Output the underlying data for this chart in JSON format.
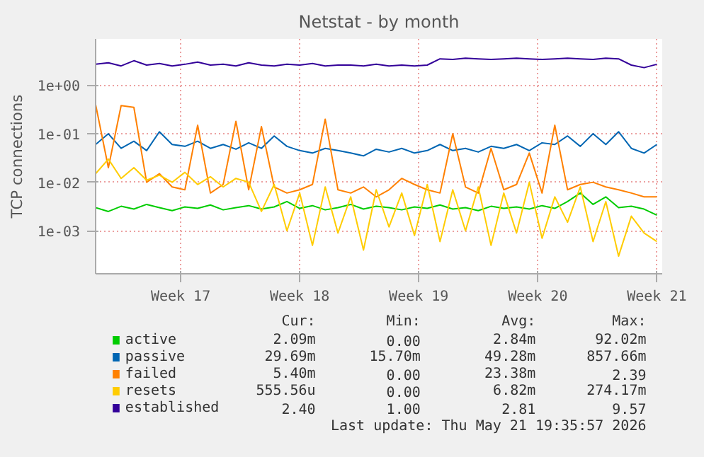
{
  "chart_data": {
    "type": "line",
    "title": "Netstat - by month",
    "ylabel": "TCP connections",
    "log": "y",
    "grid": true,
    "legend": "bottom",
    "xlim": [
      "2026-04-18T12:00",
      "2026-05-21T19:35"
    ],
    "ylim": [
      0.00013,
      9
    ],
    "xticks": [
      {
        "value": "2026-04-23T12:00",
        "label": "Week 17"
      },
      {
        "value": "2026-04-30T12:00",
        "label": "Week 18"
      },
      {
        "value": "2026-05-07T12:00",
        "label": "Week 19"
      },
      {
        "value": "2026-05-14T12:00",
        "label": "Week 20"
      },
      {
        "value": "2026-05-21T12:00",
        "label": "Week 21"
      }
    ],
    "yticks": [
      {
        "value": 0.001,
        "label": "1e-03"
      },
      {
        "value": 0.01,
        "label": "1e-02"
      },
      {
        "value": 0.1,
        "label": "1e-01"
      },
      {
        "value": 1,
        "label": "1e+00"
      }
    ],
    "x": [
      "2026-04-18T12:00",
      "2026-04-19T06:00",
      "2026-04-20T00:00",
      "2026-04-20T18:00",
      "2026-04-21T12:00",
      "2026-04-22T06:00",
      "2026-04-23T00:00",
      "2026-04-23T18:00",
      "2026-04-24T12:00",
      "2026-04-25T06:00",
      "2026-04-26T00:00",
      "2026-04-26T18:00",
      "2026-04-27T12:00",
      "2026-04-28T06:00",
      "2026-04-29T00:00",
      "2026-04-29T18:00",
      "2026-04-30T12:00",
      "2026-05-01T06:00",
      "2026-05-02T00:00",
      "2026-05-02T18:00",
      "2026-05-03T12:00",
      "2026-05-04T06:00",
      "2026-05-05T00:00",
      "2026-05-05T18:00",
      "2026-05-06T12:00",
      "2026-05-07T06:00",
      "2026-05-08T00:00",
      "2026-05-08T18:00",
      "2026-05-09T12:00",
      "2026-05-10T06:00",
      "2026-05-11T00:00",
      "2026-05-11T18:00",
      "2026-05-12T12:00",
      "2026-05-13T06:00",
      "2026-05-14T00:00",
      "2026-05-14T18:00",
      "2026-05-15T12:00",
      "2026-05-16T06:00",
      "2026-05-17T00:00",
      "2026-05-17T18:00",
      "2026-05-18T12:00",
      "2026-05-19T06:00",
      "2026-05-20T00:00",
      "2026-05-20T18:00",
      "2026-05-21T12:00"
    ],
    "series": [
      {
        "name": "active",
        "color": "#00cc00",
        "values": [
          0.003,
          0.0025,
          0.0032,
          0.0028,
          0.0035,
          0.003,
          0.0026,
          0.0031,
          0.0029,
          0.0034,
          0.0027,
          0.003,
          0.0033,
          0.0028,
          0.0031,
          0.004,
          0.0029,
          0.0033,
          0.0027,
          0.003,
          0.0035,
          0.0028,
          0.0032,
          0.003,
          0.0027,
          0.0031,
          0.0029,
          0.0034,
          0.0028,
          0.003,
          0.0026,
          0.0032,
          0.0029,
          0.0031,
          0.0028,
          0.0033,
          0.0029,
          0.004,
          0.006,
          0.0035,
          0.005,
          0.003,
          0.0032,
          0.0028,
          0.0021
        ]
      },
      {
        "name": "passive",
        "color": "#0066b3",
        "values": [
          0.06,
          0.1,
          0.05,
          0.07,
          0.045,
          0.11,
          0.06,
          0.055,
          0.07,
          0.05,
          0.06,
          0.048,
          0.065,
          0.05,
          0.09,
          0.055,
          0.045,
          0.04,
          0.05,
          0.045,
          0.04,
          0.035,
          0.048,
          0.042,
          0.05,
          0.04,
          0.045,
          0.06,
          0.045,
          0.05,
          0.042,
          0.055,
          0.05,
          0.06,
          0.045,
          0.065,
          0.06,
          0.09,
          0.055,
          0.1,
          0.06,
          0.11,
          0.05,
          0.04,
          0.06
        ]
      },
      {
        "name": "failed",
        "color": "#ff8000",
        "values": [
          0.4,
          0.02,
          0.38,
          0.35,
          0.01,
          0.015,
          0.008,
          0.007,
          0.15,
          0.006,
          0.009,
          0.18,
          0.007,
          0.14,
          0.008,
          0.006,
          0.007,
          0.009,
          0.2,
          0.007,
          0.006,
          0.008,
          0.005,
          0.007,
          0.012,
          0.009,
          0.007,
          0.006,
          0.1,
          0.008,
          0.006,
          0.05,
          0.007,
          0.009,
          0.04,
          0.006,
          0.15,
          0.007,
          0.009,
          0.01,
          0.008,
          0.007,
          0.006,
          0.005,
          0.005
        ]
      },
      {
        "name": "resets",
        "color": "#ffcc00",
        "values": [
          0.015,
          0.03,
          0.012,
          0.02,
          0.011,
          0.014,
          0.01,
          0.016,
          0.009,
          0.013,
          0.008,
          0.012,
          0.01,
          0.0025,
          0.009,
          0.001,
          0.006,
          0.0005,
          0.008,
          0.0009,
          0.005,
          0.0004,
          0.007,
          0.0012,
          0.006,
          0.0008,
          0.009,
          0.0006,
          0.007,
          0.001,
          0.008,
          0.0005,
          0.006,
          0.0009,
          0.01,
          0.0007,
          0.005,
          0.0015,
          0.008,
          0.0006,
          0.004,
          0.0003,
          0.002,
          0.0009,
          0.0006
        ]
      },
      {
        "name": "established",
        "color": "#330099",
        "values": [
          2.7,
          2.9,
          2.5,
          3.2,
          2.6,
          2.8,
          2.5,
          2.7,
          3.0,
          2.6,
          2.7,
          2.5,
          2.9,
          2.6,
          2.5,
          2.7,
          2.6,
          2.8,
          2.5,
          2.6,
          2.6,
          2.5,
          2.7,
          2.5,
          2.6,
          2.5,
          2.6,
          3.5,
          3.4,
          3.6,
          3.5,
          3.4,
          3.5,
          3.6,
          3.5,
          3.4,
          3.5,
          3.6,
          3.5,
          3.4,
          3.6,
          3.5,
          2.6,
          2.3,
          2.7
        ]
      }
    ],
    "annotations": [
      "Cur:",
      "Min:",
      "Avg:",
      "Max:",
      "2.09m",
      "0.00",
      "2.84m",
      "92.02m",
      "29.69m",
      "15.70m",
      "49.28m",
      "857.66m",
      "5.40m",
      "0.00",
      "23.38m",
      "2.39",
      "555.56u",
      "0.00",
      "6.82m",
      "274.17m",
      "2.40",
      "1.00",
      "2.81",
      "9.57",
      "Last update: Thu May 21 19:35:57 2026"
    ]
  }
}
